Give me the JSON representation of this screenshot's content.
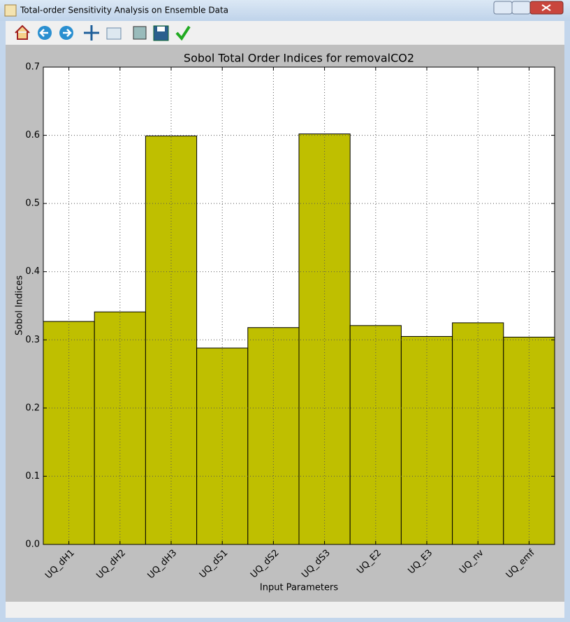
{
  "window": {
    "title": "Total-order Sensitivity Analysis on Ensemble Data"
  },
  "chart_data": {
    "type": "bar",
    "title": "Sobol Total Order Indices for removalCO2",
    "x_label": "Input Parameters",
    "y_label": "Sobol Indices",
    "categories": [
      "UQ_dH1",
      "UQ_dH2",
      "UQ_dH3",
      "UQ_dS1",
      "UQ_dS2",
      "UQ_dS3",
      "UQ_E2",
      "UQ_E3",
      "UQ_nv",
      "UQ_emf"
    ],
    "values": [
      0.327,
      0.341,
      0.599,
      0.288,
      0.318,
      0.602,
      0.321,
      0.305,
      0.325,
      0.304
    ],
    "color": "#bfbf00",
    "ylim": [
      0,
      0.7
    ],
    "yticks": [
      {
        "value": 0,
        "label": "0.0"
      },
      0.1,
      0.2,
      0.3,
      0.4,
      0.5,
      0.6,
      0.7
    ],
    "grid": true
  }
}
